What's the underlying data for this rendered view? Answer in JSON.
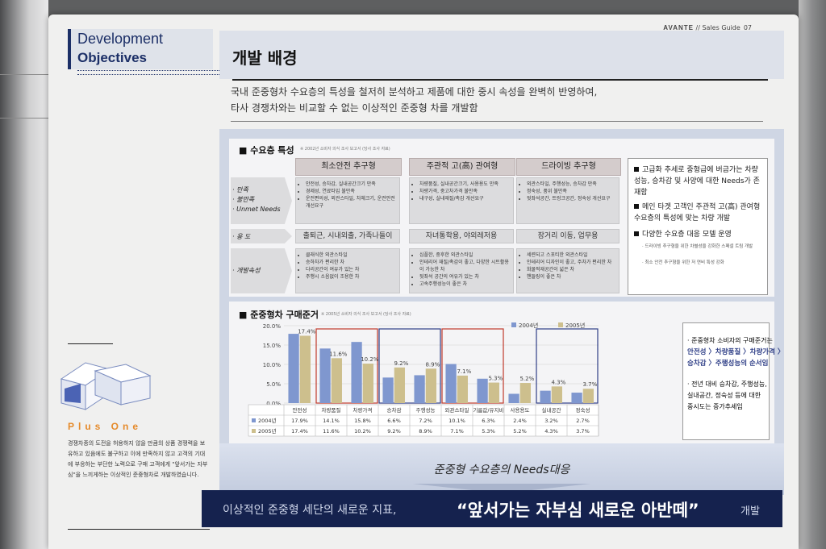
{
  "header": {
    "brand": "AVANTE",
    "guide": "// Sales Guide_",
    "page": "07"
  },
  "sidebar": {
    "title_line1": "Development",
    "title_line2": "Objectives",
    "plus_one": "Plus One",
    "plus_text": "경쟁차종의 도전을 허용하지 않을 만큼의 상품 경쟁력을 보유하고 있음에도 불구하고 이에 만족하지 않고 고객의 기대에 부응하는 부단한 노력으로 구매 고객에게 \"앞서가는 자부심\"을 느끼게하는 이상적인 준중형차로 개발하였습니다."
  },
  "main": {
    "title": "개발 배경",
    "intro_line1": "국내 준중형차 수요층의 특성을 철저히 분석하고 제품에 대한 중시 속성을 완벽히 반영하여,",
    "intro_line2": "타사 경쟁차와는 비교할 수 없는 이상적인 준중형 차를 개발함"
  },
  "demand": {
    "title": "수요층 특성",
    "note": "※ 2002년 소비자 의식 조사 보고서 (당사 조사 자료)",
    "columns": [
      "최소안전 추구형",
      "주관적 고(高) 관여형",
      "드라이빙 추구형"
    ],
    "row_labels": {
      "satisfaction": [
        "· 만족",
        "· 불만족",
        "· Unmet Needs"
      ],
      "use": "· 용 도",
      "attr": "· 개발속성"
    },
    "satisfaction": [
      [
        "안전성, 승차감, 실내공간크기 만족",
        "경제성, 연료타입 불만족",
        "운전편의성, 외관스타일, 차체크기, 운전안전 개선요구"
      ],
      [
        "차량품질, 실내공간크기, 사용용도 만족",
        "차량가격, 중고차가격 불만족",
        "내구성, 실내재질/촉감 개선요구"
      ],
      [
        "외관스타일, 주행성능, 승차감 만족",
        "정숙성, 품위 불만족",
        "뒷좌석공간, 트렁크공간, 정숙성 개선요구"
      ]
    ],
    "use": [
      "출퇴근, 시내외출, 가족나들이",
      "자녀통학용, 야외레저용",
      "장거리 이동, 업무용"
    ],
    "attr": [
      [
        "클래식한 외관스타일",
        "승하차가 편리한 차",
        "다리공간이 여유가 있는 차",
        "주행시 소음없이 조용한 차"
      ],
      [
        "심플한, 중후한 외관스타일",
        "인테리어 재질/촉감이 좋고, 다양한 시트활용이 가능한 차",
        "뒷좌석 공간의 여유가 있는 차",
        "고속주행성능이 좋은 차"
      ],
      [
        "세련되고 스포티한 외관스타일",
        "인테리어 디자인이 좋고, 주차가 편리한 차",
        "화물적재공간이 넓은 차",
        "핸들링이 좋은 차"
      ]
    ],
    "side_points": [
      "고급화 추세로 중형급에 버금가는 차량 성능, 승차감 및 사양에 대한 Needs가 존재함",
      "메인 타겟 고객인 주관적 고(高) 관여형 수요층의 특성에 맞는 차량 개발",
      "다양한 수요층 대응 모델 운영"
    ],
    "side_subs": [
      "· 드라이빙 추구형을 위한 차별성을 강화한 스페셜 트림 개발",
      "· 최소 안전 추구형을 위한 저 연비 특성 강화"
    ]
  },
  "purchase": {
    "title": "준중형차 구매준거",
    "note": "※ 2005년 소비자 의식 조사 보고서 (당사 조사 자료)",
    "side_lines": [
      "· 준중형차 소비자의 구매준거는",
      "안전성 〉차량품질 〉차량가격 〉",
      "승차감 〉주행성능의 순서임",
      "· 전년 대비 승차감, 주행성능,",
      "실내공간, 정숙성 등에 대한",
      "중시도는 증가추세임"
    ]
  },
  "chart_data": {
    "type": "bar",
    "categories": [
      "안전성",
      "차량품질",
      "차량가격",
      "승차감",
      "주행성능",
      "외관스타일",
      "기름값/유지비",
      "사용용도",
      "실내공간",
      "정숙성"
    ],
    "series": [
      {
        "name": "2004년",
        "values": [
          17.9,
          14.1,
          15.8,
          6.6,
          7.2,
          10.1,
          6.3,
          2.4,
          3.2,
          2.7
        ],
        "color": "#7f97cf"
      },
      {
        "name": "2005년",
        "values": [
          17.4,
          11.6,
          10.2,
          9.2,
          8.9,
          7.1,
          5.3,
          5.2,
          4.3,
          3.7
        ],
        "color": "#cdbf8d"
      }
    ],
    "value_labels": [
      "17.4%",
      "11.6%",
      "10.2%",
      "9.2%",
      "8.9%",
      "7.1%",
      "5.3%",
      "5.2%",
      "4.3%",
      "3.7%"
    ],
    "table_2004": [
      "17.9%",
      "14.1%",
      "15.8%",
      "6.6%",
      "7.2%",
      "10.1%",
      "6.3%",
      "2.4%",
      "3.2%",
      "2.7%"
    ],
    "table_2005": [
      "17.4%",
      "11.6%",
      "10.2%",
      "9.2%",
      "8.9%",
      "7.1%",
      "5.3%",
      "5.2%",
      "4.3%",
      "3.7%"
    ],
    "yticks": [
      "20.0%",
      "15.0%",
      "10.0%",
      "5.0%",
      "0.0%"
    ],
    "ylim": [
      0,
      20
    ],
    "legend_position": "top-right",
    "highlight_groups": [
      {
        "start": 1,
        "end": 2,
        "color": "#c0392b"
      },
      {
        "start": 3,
        "end": 4,
        "color": "#2f3f87"
      },
      {
        "start": 5,
        "end": 6,
        "color": "#c0392b"
      },
      {
        "start": 8,
        "end": 9,
        "color": "#2f3f87"
      }
    ]
  },
  "needs": {
    "text": "준중형 수요층의 Needs대응"
  },
  "banner": {
    "part1": "이상적인 준중형 세단의 새로운 지표,",
    "part2": "“앞서가는 자부심 새로운 아반떼”",
    "part3": "개발"
  }
}
